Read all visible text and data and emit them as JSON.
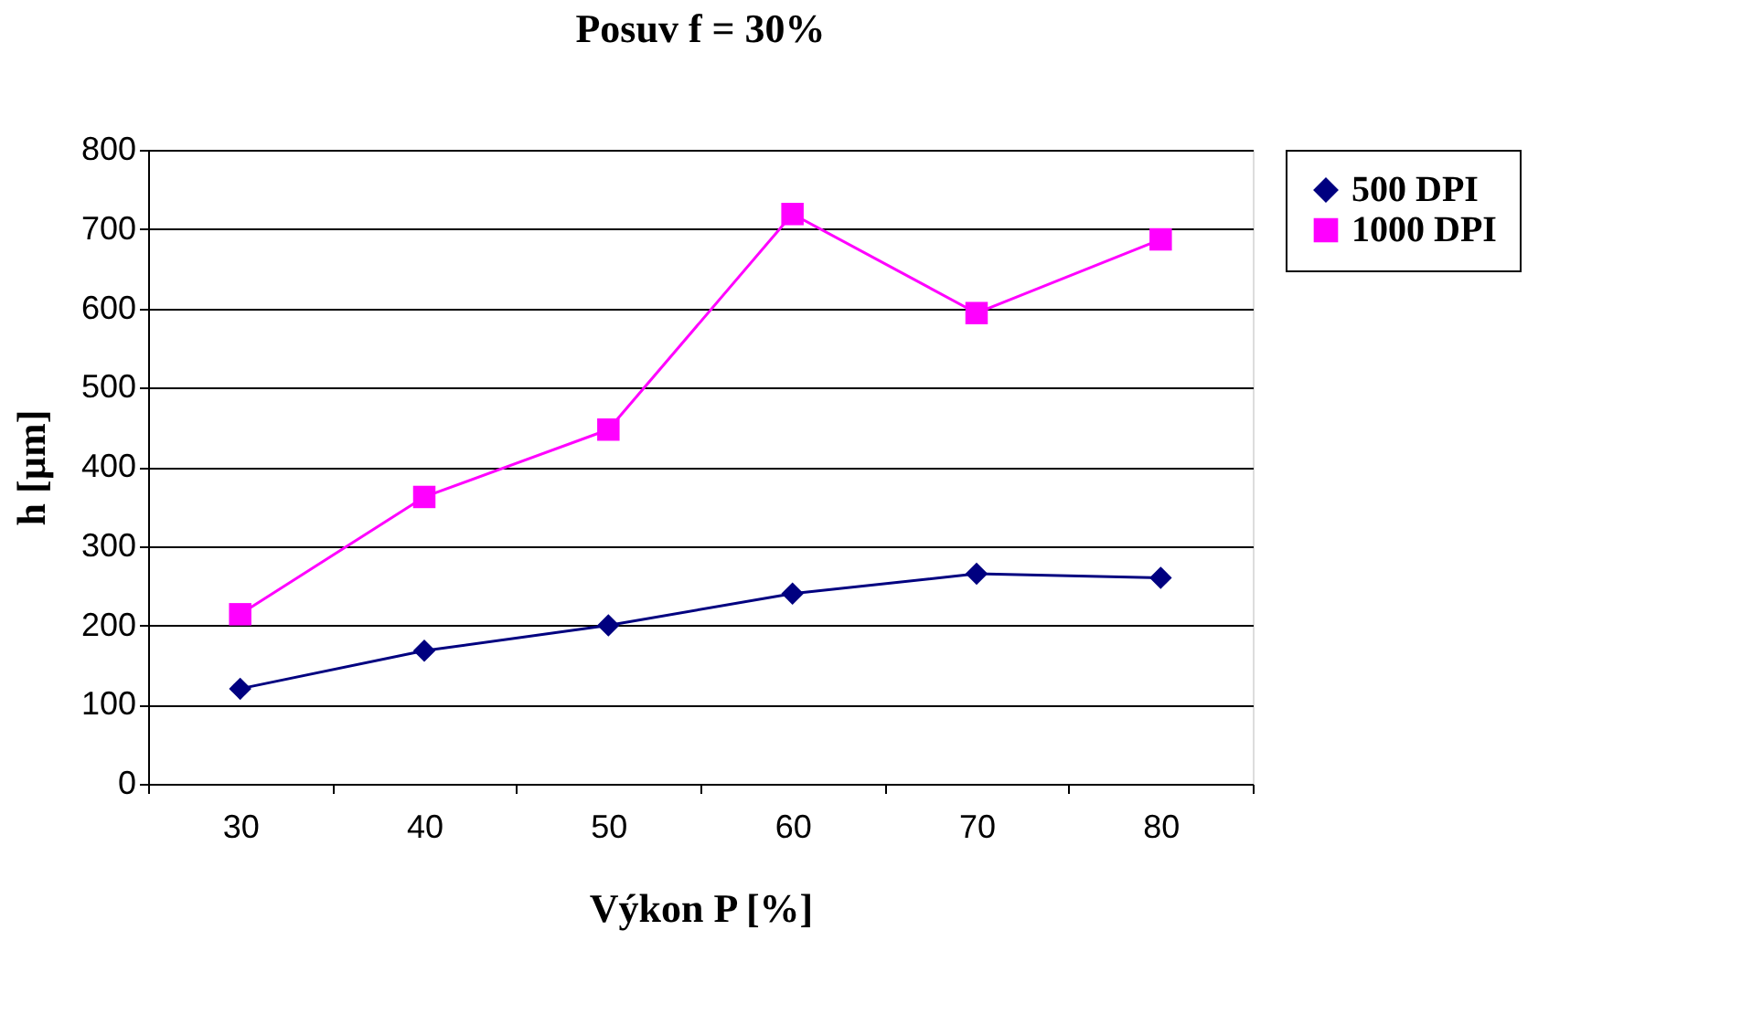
{
  "chart_data": {
    "type": "line",
    "title": "Posuv f = 30%",
    "xlabel": "Výkon P [%]",
    "ylabel": "h [µm]",
    "categories": [
      "30",
      "40",
      "50",
      "60",
      "70",
      "80"
    ],
    "series": [
      {
        "name": "500 DPI",
        "color": "#000080",
        "marker": "diamond",
        "values": [
          120,
          168,
          200,
          240,
          265,
          260
        ]
      },
      {
        "name": "1000 DPI",
        "color": "#ff00ff",
        "marker": "square",
        "values": [
          214,
          362,
          447,
          719,
          594,
          687
        ]
      }
    ],
    "ylim": [
      0,
      800
    ],
    "yticks": [
      0,
      100,
      200,
      300,
      400,
      500,
      600,
      700,
      800
    ],
    "grid": "y",
    "legend": "right"
  }
}
